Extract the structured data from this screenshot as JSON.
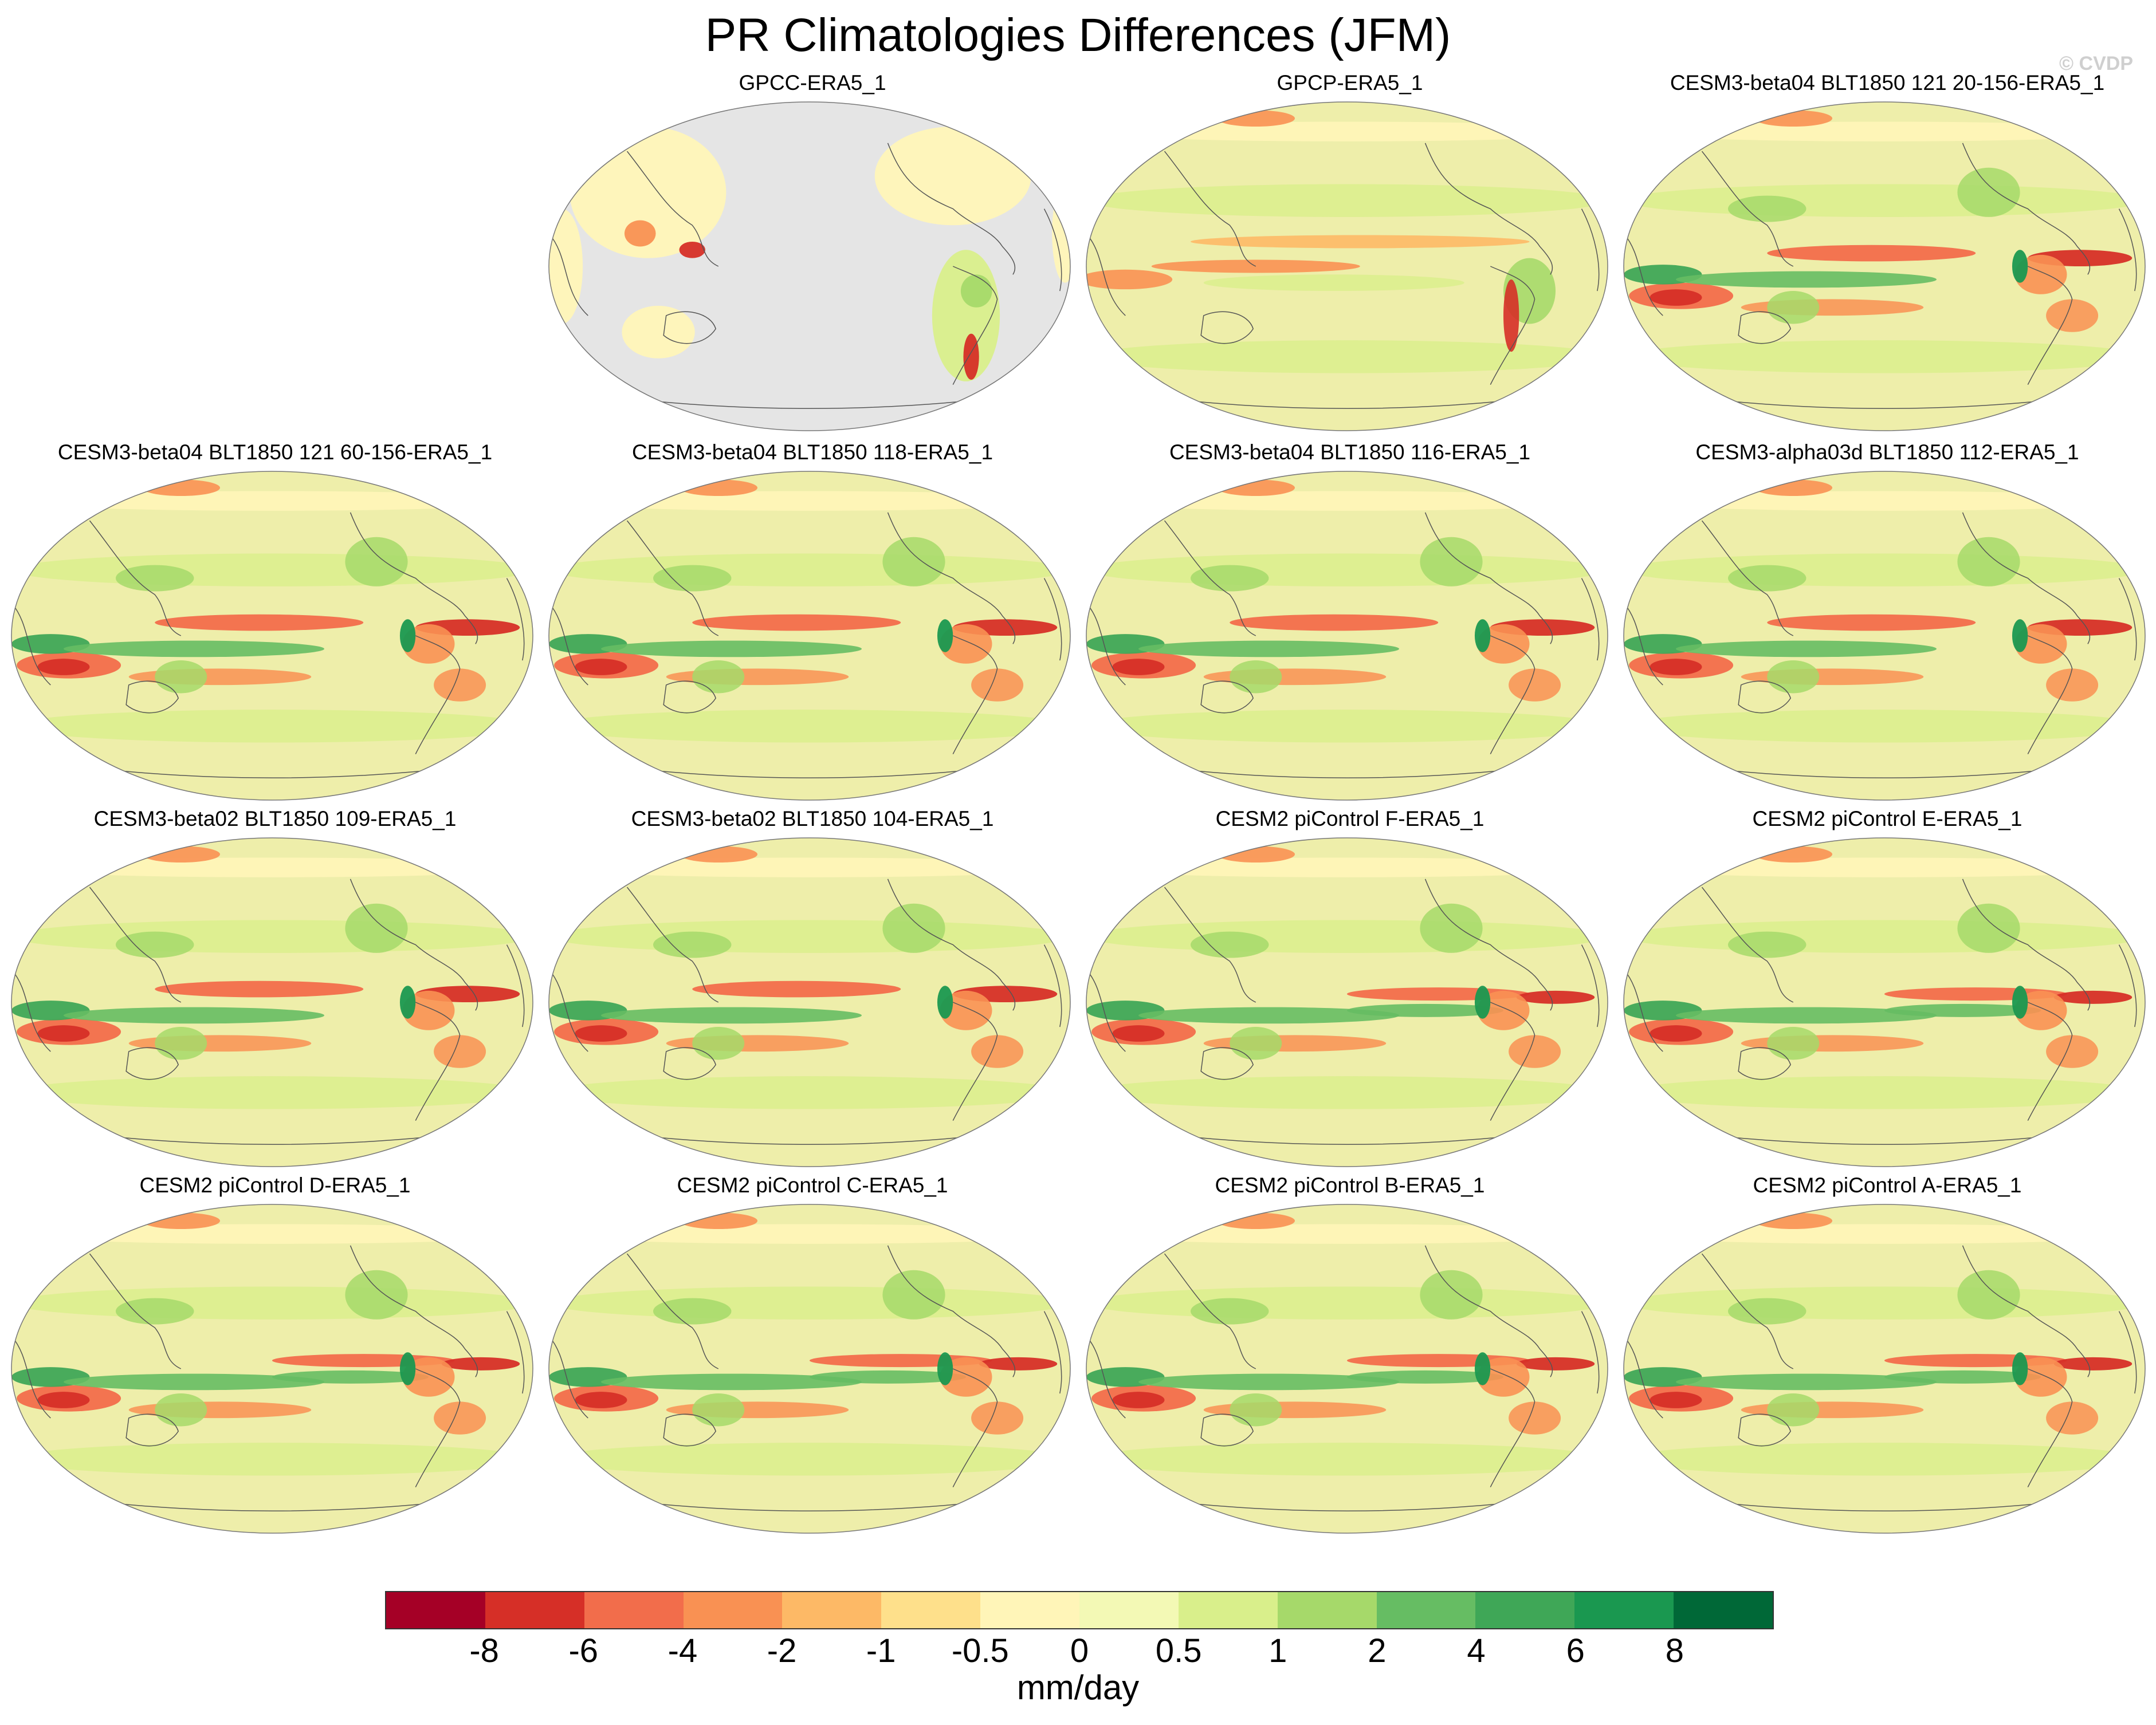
{
  "figure": {
    "title": "PR Climatologies Differences (JFM)",
    "watermark": "© CVDP"
  },
  "panels": [
    {
      "label": "GPCC-ERA5_1",
      "land_only": true
    },
    {
      "label": "GPCP-ERA5_1",
      "style": "obs"
    },
    {
      "label": "CESM3-beta04 BLT1850 121 20-156-ERA5_1",
      "style": "model"
    },
    {
      "label": "CESM3-beta04 BLT1850 121 60-156-ERA5_1",
      "style": "model"
    },
    {
      "label": "CESM3-beta04 BLT1850 118-ERA5_1",
      "style": "model"
    },
    {
      "label": "CESM3-beta04 BLT1850 116-ERA5_1",
      "style": "model"
    },
    {
      "label": "CESM3-alpha03d BLT1850 112-ERA5_1",
      "style": "model"
    },
    {
      "label": "CESM3-beta02 BLT1850 109-ERA5_1",
      "style": "model"
    },
    {
      "label": "CESM3-beta02 BLT1850 104-ERA5_1",
      "style": "model"
    },
    {
      "label": "CESM2 piControl F-ERA5_1",
      "style": "cesm2"
    },
    {
      "label": "CESM2 piControl E-ERA5_1",
      "style": "cesm2"
    },
    {
      "label": "CESM2 piControl D-ERA5_1",
      "style": "cesm2"
    },
    {
      "label": "CESM2 piControl C-ERA5_1",
      "style": "cesm2"
    },
    {
      "label": "CESM2 piControl B-ERA5_1",
      "style": "cesm2"
    },
    {
      "label": "CESM2 piControl A-ERA5_1",
      "style": "cesm2"
    }
  ],
  "colorbar": {
    "units": "mm/day",
    "tick_labels": [
      "-8",
      "-6",
      "-4",
      "-2",
      "-1",
      "-0.5",
      "0",
      "0.5",
      "1",
      "2",
      "4",
      "6",
      "8"
    ],
    "colors": [
      "#a50026",
      "#d62f27",
      "#f26d4b",
      "#f99153",
      "#fdb966",
      "#fee08b",
      "#fff5b8",
      "#f3f9b5",
      "#d9ef8b",
      "#a6d96a",
      "#66bd63",
      "#3fa757",
      "#1a9850",
      "#006837"
    ]
  },
  "map_colors": {
    "ocean_background": "#eeeeaa",
    "land_mask": "#e5e5e5",
    "coastline": "#555555"
  }
}
